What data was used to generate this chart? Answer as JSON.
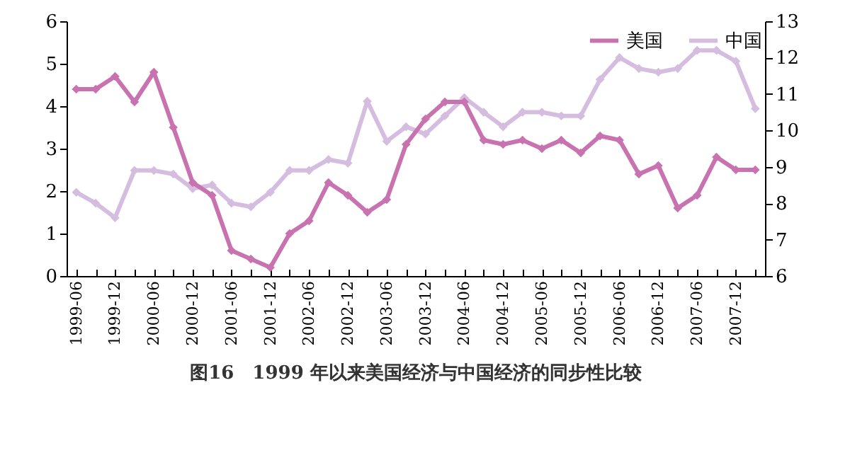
{
  "chart_data": {
    "type": "line",
    "title": "图16　1999 年以来美国经济与中国经济的同步性比较",
    "categories": [
      "1999-06",
      null,
      "1999-12",
      null,
      "2000-06",
      null,
      "2000-12",
      null,
      "2001-06",
      null,
      "2001-12",
      null,
      "2002-06",
      null,
      "2002-12",
      null,
      "2003-06",
      null,
      "2003-12",
      null,
      "2004-06",
      null,
      "2004-12",
      null,
      "2005-06",
      null,
      "2005-12",
      null,
      "2006-06",
      null,
      "2006-12",
      null,
      "2007-06",
      null,
      "2007-12",
      null
    ],
    "series": [
      {
        "name": "美国",
        "color": "#c873b0",
        "values": [
          4.4,
          4.4,
          4.7,
          4.1,
          4.8,
          3.5,
          2.2,
          1.9,
          0.6,
          0.4,
          0.2,
          1.0,
          1.3,
          2.2,
          1.9,
          1.5,
          1.8,
          3.1,
          3.7,
          4.1,
          4.1,
          3.2,
          3.1,
          3.2,
          3.0,
          3.2,
          2.9,
          3.3,
          3.2,
          2.4,
          2.6,
          1.6,
          1.9,
          2.8,
          2.5,
          2.5
        ]
      },
      {
        "name": "中国",
        "color": "#d5bde0",
        "axis": "y2",
        "values": [
          8.3,
          8.0,
          7.6,
          8.9,
          8.9,
          8.8,
          8.4,
          8.5,
          8.0,
          7.9,
          8.3,
          8.9,
          8.9,
          9.2,
          9.1,
          10.8,
          9.7,
          10.1,
          9.9,
          10.4,
          10.9,
          10.5,
          10.1,
          10.5,
          10.5,
          10.4,
          10.4,
          11.4,
          12.0,
          11.7,
          11.6,
          11.7,
          12.2,
          12.2,
          11.9,
          10.6
        ]
      }
    ],
    "ylim": [
      0,
      6
    ],
    "yticks": [
      0,
      1,
      2,
      3,
      4,
      5,
      6
    ],
    "y2lim": [
      6,
      13
    ],
    "y2ticks": [
      6,
      7,
      8,
      9,
      10,
      11,
      12,
      13
    ],
    "legend": "top right",
    "marker": "diamond",
    "line_style": "solid"
  }
}
